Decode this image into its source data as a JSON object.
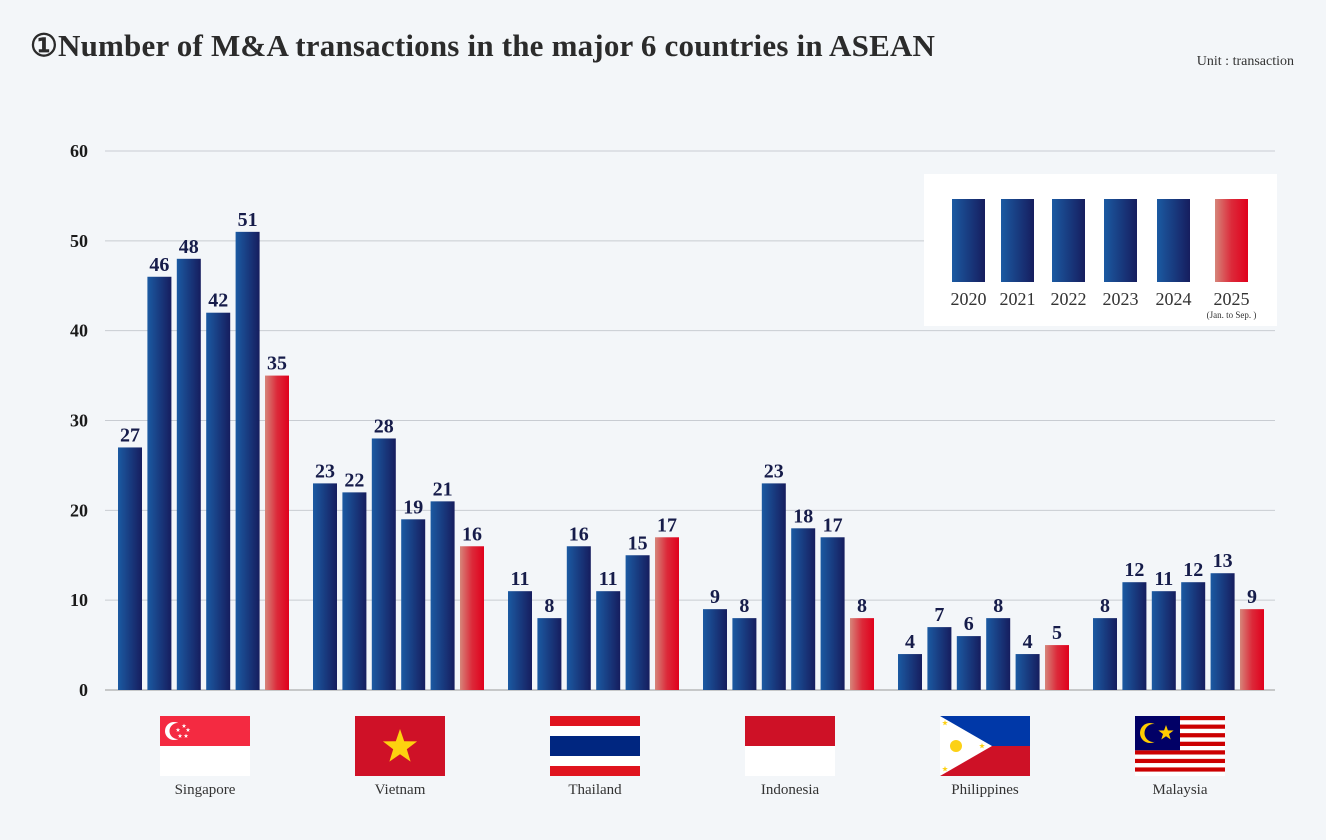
{
  "title": "①Number of M&A transactions in the major 6 countries in ASEAN",
  "unit": "Unit : transaction",
  "colors": {
    "bar_blue_light": "#1b5aa2",
    "bar_blue_dark": "#161d5e",
    "bar_red_light": "#d6857a",
    "bar_red_dark": "#e0001c",
    "grid": "#c8ccd2"
  },
  "chart_data": {
    "type": "bar",
    "title": "Number of M&A transactions in the major 6 countries in ASEAN",
    "ylabel": "transaction",
    "ylim": [
      0,
      60
    ],
    "yticks": [
      "0",
      "10",
      "20",
      "30",
      "40",
      "50",
      "60"
    ],
    "grid": true,
    "legend_position": "top-right",
    "categories": [
      "Singapore",
      "Vietnam",
      "Thailand",
      "Indonesia",
      "Philippines",
      "Malaysia"
    ],
    "series": [
      {
        "name": "2020",
        "values": [
          27,
          23,
          11,
          9,
          4,
          8
        ]
      },
      {
        "name": "2021",
        "values": [
          46,
          22,
          8,
          8,
          7,
          12
        ]
      },
      {
        "name": "2022",
        "values": [
          48,
          28,
          16,
          23,
          6,
          11
        ]
      },
      {
        "name": "2023",
        "values": [
          42,
          19,
          11,
          18,
          8,
          12
        ]
      },
      {
        "name": "2024",
        "values": [
          51,
          21,
          15,
          17,
          4,
          13
        ]
      },
      {
        "name": "2025",
        "values": [
          35,
          16,
          17,
          8,
          5,
          9
        ],
        "note": "(Jan. to Sep. )"
      }
    ],
    "bar_labels": [
      [
        "27",
        "46",
        "48",
        "42",
        "51",
        "35"
      ],
      [
        "23",
        "22",
        "28",
        "19",
        "21",
        "16"
      ],
      [
        "11",
        "8",
        "16",
        "11",
        "15",
        "17"
      ],
      [
        "9",
        "8",
        "23",
        "18",
        "17",
        "8"
      ],
      [
        "4",
        "7",
        "6",
        "8",
        "4",
        "5"
      ],
      [
        "8",
        "12",
        "11",
        "12",
        "13",
        "9"
      ]
    ]
  }
}
